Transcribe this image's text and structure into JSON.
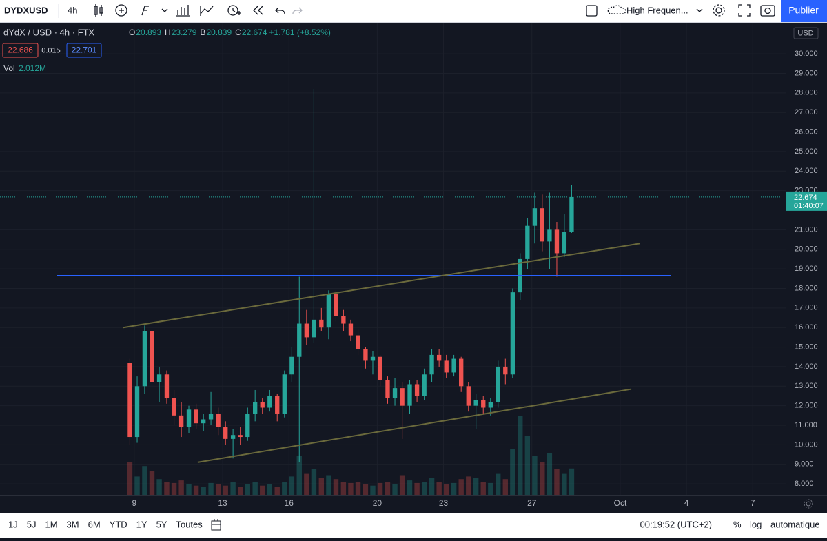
{
  "toolbar": {
    "symbol": "DYDXUSD",
    "interval": "4h",
    "layout": "High Frequen...",
    "publish": "Publier"
  },
  "legend": {
    "title": "dYdX / USD · 4h · FTX",
    "o": "O",
    "h": "H",
    "l": "B",
    "c": "C",
    "change": "+1.781 (+8.52%)",
    "bid": "22.686",
    "spread": "0.015",
    "ask": "22.701",
    "vol": "Vol",
    "vol_value": "2.012M"
  },
  "price_axis": {
    "currency": "USD",
    "countdown": "01:40:07"
  },
  "bottom_bar": {
    "ranges": [
      "1J",
      "5J",
      "1M",
      "3M",
      "6M",
      "YTD",
      "1Y",
      "5Y",
      "Toutes"
    ],
    "clock": "00:19:52 (UTC+2)",
    "percent": "%",
    "log": "log",
    "auto": "automatique"
  },
  "chart_data": {
    "type": "candlestick",
    "up_color": "#26a69a",
    "down_color": "#ef5350",
    "xlim": [
      2.92,
      38.49
    ],
    "ylim": [
      7.44,
      31.59
    ],
    "grid": true,
    "xticks": [
      9,
      13,
      16,
      20,
      23,
      27,
      {
        "value": 31,
        "label": "Oct"
      },
      {
        "value": 34,
        "label": "4"
      },
      {
        "value": 37,
        "label": "7"
      }
    ],
    "yticks": [
      {
        "value": 8,
        "label": "8.000"
      },
      {
        "value": 9,
        "label": "9.000"
      },
      {
        "value": 10,
        "label": "10.000"
      },
      {
        "value": 11,
        "label": "11.000"
      },
      {
        "value": 12,
        "label": "12.000"
      },
      {
        "value": 13,
        "label": "13.000"
      },
      {
        "value": 14,
        "label": "14.000"
      },
      {
        "value": 15,
        "label": "15.000"
      },
      {
        "value": 16,
        "label": "16.000"
      },
      {
        "value": 17,
        "label": "17.000"
      },
      {
        "value": 18,
        "label": "18.000"
      },
      {
        "value": 19,
        "label": "19.000"
      },
      {
        "value": 20,
        "label": "20.000"
      },
      {
        "value": 21,
        "label": "21.000"
      },
      {
        "value": 23,
        "label": "23.000"
      },
      {
        "value": 24,
        "label": "24.000"
      },
      {
        "value": 25,
        "label": "25.000"
      },
      {
        "value": 26,
        "label": "26.000"
      },
      {
        "value": 27,
        "label": "27.000"
      },
      {
        "value": 28,
        "label": "28.000"
      },
      {
        "value": 29,
        "label": "29.000"
      },
      {
        "value": 30,
        "label": "30.000"
      }
    ],
    "candles": {
      "x": [
        8.8,
        9.13,
        9.47,
        9.8,
        10.13,
        10.47,
        10.8,
        11.13,
        11.47,
        11.8,
        12.13,
        12.47,
        12.8,
        13.13,
        13.47,
        13.8,
        14.13,
        14.47,
        14.8,
        15.13,
        15.47,
        15.8,
        16.13,
        16.47,
        16.8,
        17.13,
        17.47,
        17.8,
        18.13,
        18.47,
        18.8,
        19.13,
        19.47,
        19.8,
        20.13,
        20.47,
        20.8,
        21.13,
        21.47,
        21.8,
        22.13,
        22.47,
        22.8,
        23.13,
        23.47,
        23.8,
        24.13,
        24.47,
        24.8,
        25.13,
        25.47,
        25.8,
        26.13,
        26.47,
        26.8,
        27.13,
        27.47,
        27.8,
        28.13,
        28.47,
        28.8
      ],
      "open": [
        14.2,
        10.4,
        13.0,
        15.8,
        13.2,
        13.6,
        12.4,
        11.5,
        10.9,
        11.8,
        11.1,
        11.3,
        11.6,
        10.9,
        10.3,
        10.5,
        10.4,
        11.6,
        12.2,
        11.9,
        12.5,
        11.6,
        13.6,
        14.5,
        16.2,
        15.5,
        16.4,
        16.0,
        17.7,
        16.6,
        16.2,
        15.6,
        14.9,
        14.3,
        14.5,
        13.3,
        12.4,
        12.9,
        12.0,
        13.1,
        12.5,
        13.6,
        14.6,
        14.3,
        13.7,
        14.4,
        13.0,
        12.0,
        12.3,
        11.9,
        12.2,
        14.0,
        13.6,
        17.8,
        19.5,
        21.2,
        22.1,
        20.4,
        21.0,
        19.8,
        20.893
      ],
      "high": [
        14.4,
        13.5,
        16.1,
        16.0,
        14.0,
        13.8,
        12.8,
        12.2,
        12.0,
        12.1,
        11.6,
        12.7,
        11.9,
        11.2,
        10.8,
        10.9,
        11.9,
        12.8,
        12.4,
        12.8,
        12.6,
        13.8,
        15.0,
        18.6,
        16.9,
        28.2,
        17.0,
        17.9,
        17.9,
        16.9,
        16.4,
        15.9,
        15.0,
        14.8,
        14.6,
        13.5,
        13.4,
        13.2,
        13.3,
        13.3,
        13.9,
        14.9,
        14.9,
        14.6,
        14.6,
        14.5,
        13.2,
        12.6,
        12.5,
        12.4,
        14.3,
        14.4,
        18.0,
        19.8,
        21.6,
        22.9,
        22.8,
        22.9,
        21.4,
        21.8,
        23.279
      ],
      "low": [
        10.0,
        10.1,
        12.6,
        12.8,
        12.2,
        12.1,
        11.0,
        10.4,
        10.6,
        10.8,
        10.7,
        11.0,
        10.5,
        10.0,
        9.3,
        10.0,
        10.2,
        11.2,
        11.6,
        11.7,
        11.2,
        11.4,
        13.2,
        9.1,
        15.1,
        15.2,
        15.8,
        15.4,
        16.3,
        15.8,
        15.3,
        14.6,
        13.9,
        13.6,
        13.0,
        12.1,
        12.0,
        10.3,
        11.6,
        12.2,
        12.3,
        13.2,
        14.0,
        13.4,
        13.5,
        12.7,
        11.7,
        10.8,
        11.6,
        11.5,
        11.9,
        13.1,
        13.4,
        17.4,
        19.0,
        20.3,
        19.9,
        19.0,
        18.6,
        19.6,
        20.839
      ],
      "close": [
        10.4,
        13.0,
        15.8,
        13.2,
        13.6,
        12.4,
        11.5,
        10.9,
        11.8,
        11.1,
        11.3,
        11.6,
        10.9,
        10.3,
        10.5,
        10.4,
        11.6,
        12.2,
        11.9,
        12.5,
        11.6,
        13.6,
        14.5,
        16.2,
        15.5,
        16.4,
        16.0,
        17.7,
        16.6,
        16.2,
        15.6,
        14.9,
        14.3,
        14.5,
        13.3,
        12.4,
        12.9,
        12.0,
        13.1,
        12.5,
        13.6,
        14.6,
        14.3,
        13.7,
        14.4,
        13.0,
        12.0,
        12.3,
        11.9,
        12.2,
        14.0,
        13.6,
        17.8,
        19.5,
        21.2,
        22.1,
        20.4,
        21.0,
        19.8,
        20.893,
        22.674
      ]
    },
    "volume": [
      2.5,
      1.4,
      2.2,
      1.8,
      1.2,
      1.0,
      0.9,
      1.1,
      0.8,
      0.7,
      0.6,
      0.9,
      0.8,
      0.7,
      1.0,
      0.6,
      0.8,
      1.0,
      0.7,
      0.8,
      0.6,
      1.0,
      1.4,
      3.0,
      1.6,
      2.0,
      1.3,
      1.5,
      1.2,
      1.0,
      0.9,
      1.0,
      0.8,
      0.7,
      0.9,
      1.0,
      0.8,
      1.5,
      1.1,
      0.9,
      1.0,
      1.3,
      1.0,
      0.8,
      0.9,
      1.2,
      1.4,
      1.3,
      1.0,
      0.9,
      1.6,
      1.2,
      3.5,
      6.0,
      4.5,
      3.0,
      2.5,
      3.2,
      2.0,
      1.6,
      2.012
    ],
    "drawings": {
      "hline": {
        "price": 18.65,
        "x": [
          5.5,
          33.3
        ],
        "color": "#2962ff"
      },
      "trendlines": [
        {
          "x": [
            8.5,
            31.9
          ],
          "y": [
            16.0,
            20.3
          ],
          "color": "#6b6a3c"
        },
        {
          "x": [
            11.87,
            31.5
          ],
          "y": [
            9.1,
            12.85
          ],
          "color": "#6b6a3c"
        }
      ]
    }
  }
}
